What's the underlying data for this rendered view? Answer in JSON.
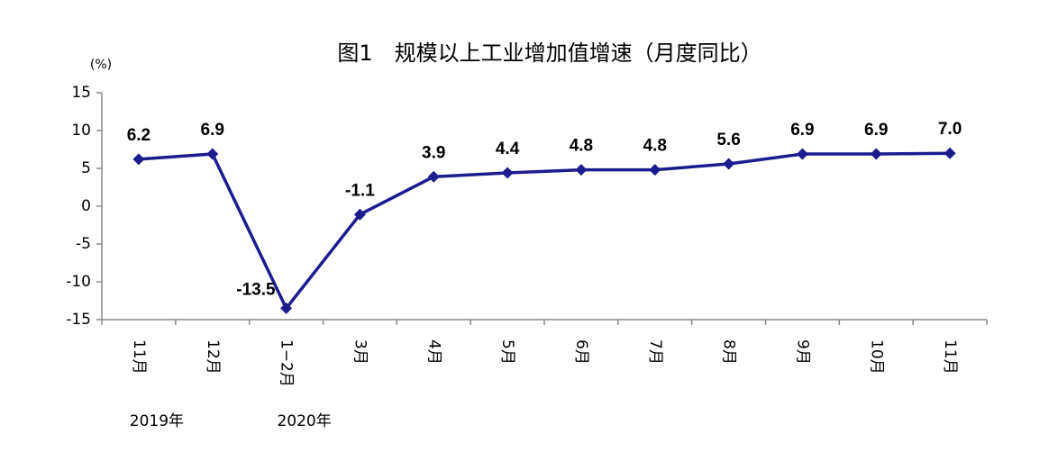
{
  "chart_data": {
    "type": "line",
    "title": "图1　规模以上工业增加值增速（月度同比）",
    "y_unit_label": "(%)",
    "categories": [
      "11月",
      "12月",
      "1−2月",
      "3月",
      "4月",
      "5月",
      "6月",
      "7月",
      "8月",
      "9月",
      "10月",
      "11月"
    ],
    "year_labels": [
      "2019年",
      "2020年"
    ],
    "series": [
      {
        "name": "规模以上工业增加值增速",
        "color": "#1c1c8f",
        "values": [
          6.2,
          6.9,
          -13.5,
          -1.1,
          3.9,
          4.4,
          4.8,
          4.8,
          5.6,
          6.9,
          6.9,
          7.0
        ],
        "value_labels": [
          "6.2",
          "6.9",
          "-13.5",
          "-1.1",
          "3.9",
          "4.4",
          "4.8",
          "4.8",
          "5.6",
          "6.9",
          "6.9",
          "7.0"
        ]
      }
    ],
    "ylim": [
      -15,
      15
    ],
    "yticks": [
      -15,
      -10,
      -5,
      0,
      5,
      10,
      15
    ],
    "grid": false,
    "legend": false
  }
}
